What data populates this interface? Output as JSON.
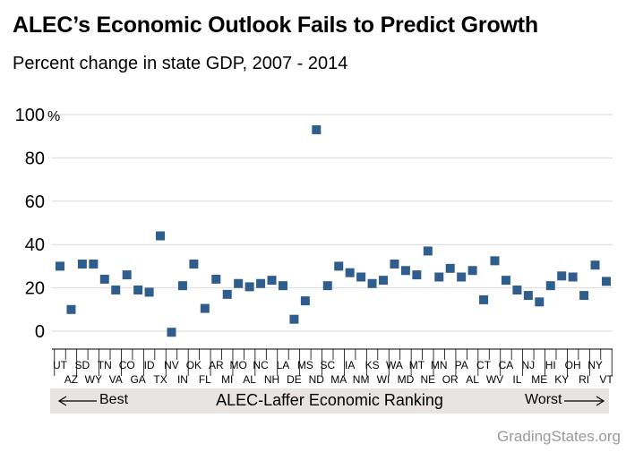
{
  "header": {
    "title": "ALEC’s Economic Outlook Fails to Predict Growth",
    "subtitle": "Percent change in state GDP, 2007 - 2014"
  },
  "ranking_bar": {
    "label": "ALEC-Laffer Economic Ranking",
    "left_label": "Best",
    "right_label": "Worst"
  },
  "footer": {
    "source": "GradingStates.org"
  },
  "colors": {
    "marker": "#2f5d8e",
    "grid": "#d9d9d9",
    "band": "#e9e4df"
  },
  "chart_data": {
    "type": "scatter",
    "title": "ALEC’s Economic Outlook Fails to Predict Growth",
    "subtitle": "Percent change in state GDP, 2007 - 2014",
    "xlabel": "ALEC-Laffer Economic Ranking",
    "ylabel": "",
    "y_unit": "%",
    "ylim": [
      -5,
      100
    ],
    "yticks": [
      0,
      20,
      40,
      60,
      80,
      100
    ],
    "ytick_labels": [
      "0",
      "20",
      "40",
      "60",
      "80",
      "100"
    ],
    "grid": true,
    "categories": [
      "UT",
      "AZ",
      "SD",
      "WY",
      "TN",
      "VA",
      "CO",
      "GA",
      "ID",
      "TX",
      "NV",
      "IN",
      "OK",
      "FL",
      "AR",
      "MI",
      "MO",
      "AL",
      "NC",
      "NH",
      "LA",
      "DE",
      "MS",
      "ND",
      "SC",
      "MA",
      "IA",
      "NM",
      "KS",
      "WI",
      "WA",
      "MD",
      "MT",
      "NE",
      "MN",
      "OR",
      "PA",
      "AL",
      "CT",
      "WV",
      "CA",
      "IL",
      "NJ",
      "ME",
      "HI",
      "KY",
      "OH",
      "RI",
      "NY",
      "VT"
    ],
    "values": [
      30,
      10,
      31,
      31,
      24,
      19,
      26,
      19,
      18,
      44,
      -0.5,
      21,
      31,
      10.5,
      24,
      17,
      22,
      20.5,
      22,
      23.5,
      21,
      5.5,
      14,
      93,
      21,
      30,
      27,
      25,
      22,
      23.5,
      31,
      28,
      26,
      37,
      25,
      29,
      25,
      28,
      14.5,
      32.5,
      23.5,
      19,
      16.5,
      13.5,
      21,
      25.5,
      25,
      16.5,
      30.5,
      23
    ]
  }
}
